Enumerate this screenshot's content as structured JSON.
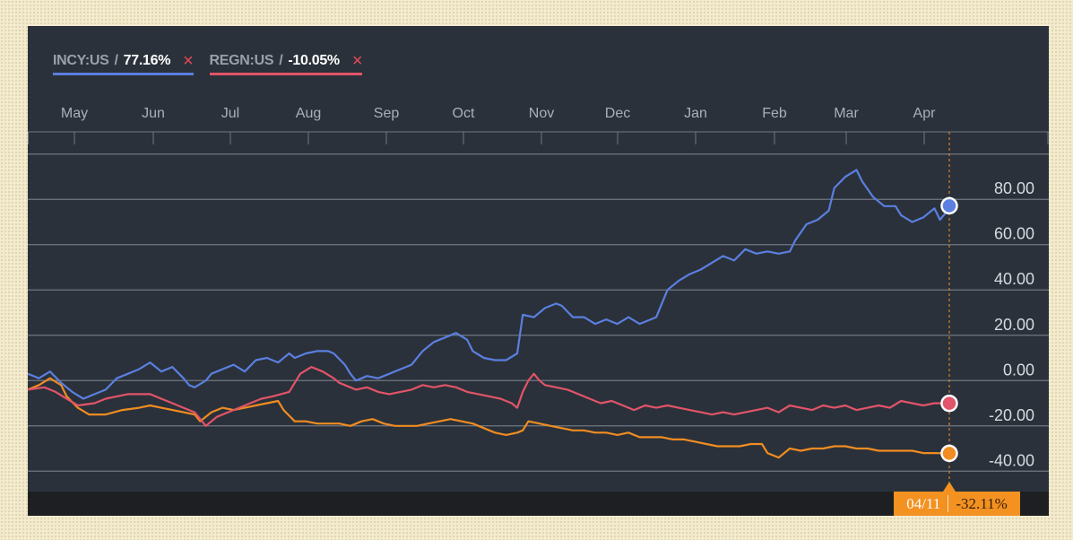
{
  "legend": [
    {
      "symbol": "INCY:US",
      "sep": "/",
      "value": "77.16%",
      "color": "#5b7fe0",
      "close": "×"
    },
    {
      "symbol": "REGN:US",
      "sep": "/",
      "value": "-10.05%",
      "color": "#e25469",
      "close": "×"
    }
  ],
  "badge": {
    "date": "04/11",
    "value": "-32.11%"
  },
  "colors": {
    "incy": "#5b7fe0",
    "regn": "#e25469",
    "third": "#f08c22",
    "background": "#2a313a",
    "grid": "#6f7780",
    "badge": "#f39121"
  },
  "chart_data": {
    "type": "line",
    "x_months": [
      "May",
      "Jun",
      "Jul",
      "Aug",
      "Sep",
      "Oct",
      "Nov",
      "Dec",
      "Jan",
      "Feb",
      "Mar",
      "Apr"
    ],
    "y_ticks": [
      "80.00",
      "60.00",
      "40.00",
      "20.00",
      "0.00",
      "-20.00",
      "-40.00"
    ],
    "y_tick_values": [
      80,
      60,
      40,
      20,
      0,
      -20,
      -40
    ],
    "ylim": [
      -49,
      109
    ],
    "grid": true,
    "legend_position": "top-left",
    "series": [
      {
        "name": "INCY:US",
        "color": "#5b7fe0",
        "last": 77.16,
        "points": [
          [
            0,
            3
          ],
          [
            2,
            1
          ],
          [
            4,
            4
          ],
          [
            6,
            -1
          ],
          [
            8,
            -5
          ],
          [
            10,
            -8
          ],
          [
            12,
            -6
          ],
          [
            14,
            -4
          ],
          [
            16,
            1
          ],
          [
            18,
            3
          ],
          [
            20,
            5
          ],
          [
            22,
            8
          ],
          [
            24,
            4
          ],
          [
            26,
            6
          ],
          [
            28,
            1
          ],
          [
            29,
            -2
          ],
          [
            30,
            -3
          ],
          [
            32,
            0
          ],
          [
            33,
            3
          ],
          [
            35,
            5
          ],
          [
            37,
            7
          ],
          [
            39,
            4
          ],
          [
            41,
            9
          ],
          [
            43,
            10
          ],
          [
            45,
            8
          ],
          [
            47,
            12
          ],
          [
            48,
            10
          ],
          [
            50,
            12
          ],
          [
            52,
            13
          ],
          [
            54,
            13
          ],
          [
            55,
            12
          ],
          [
            57,
            7
          ],
          [
            58,
            3
          ],
          [
            59,
            0
          ],
          [
            61,
            2
          ],
          [
            63,
            1
          ],
          [
            65,
            3
          ],
          [
            67,
            5
          ],
          [
            69,
            7
          ],
          [
            71,
            13
          ],
          [
            73,
            17
          ],
          [
            75,
            19
          ],
          [
            77,
            21
          ],
          [
            79,
            18
          ],
          [
            80,
            13
          ],
          [
            82,
            10
          ],
          [
            84,
            9
          ],
          [
            86,
            9
          ],
          [
            88,
            12
          ],
          [
            89,
            29
          ],
          [
            91,
            28
          ],
          [
            93,
            32
          ],
          [
            95,
            34
          ],
          [
            96,
            33
          ],
          [
            98,
            28
          ],
          [
            100,
            28
          ],
          [
            102,
            25
          ],
          [
            104,
            27
          ],
          [
            106,
            25
          ],
          [
            108,
            28
          ],
          [
            110,
            25
          ],
          [
            112,
            27
          ],
          [
            113,
            28
          ],
          [
            115,
            40
          ],
          [
            117,
            44
          ],
          [
            119,
            47
          ],
          [
            121,
            49
          ],
          [
            123,
            52
          ],
          [
            125,
            55
          ],
          [
            127,
            53
          ],
          [
            129,
            58
          ],
          [
            131,
            56
          ],
          [
            133,
            57
          ],
          [
            135,
            56
          ],
          [
            137,
            57
          ],
          [
            138,
            62
          ],
          [
            140,
            69
          ],
          [
            142,
            71
          ],
          [
            144,
            75
          ],
          [
            145,
            85
          ],
          [
            147,
            90
          ],
          [
            149,
            93
          ],
          [
            150,
            88
          ],
          [
            152,
            81
          ],
          [
            154,
            77
          ],
          [
            156,
            77
          ],
          [
            157,
            73
          ],
          [
            159,
            70
          ],
          [
            161,
            72
          ],
          [
            163,
            76
          ],
          [
            164,
            71
          ],
          [
            165,
            74
          ],
          [
            166,
            77.16
          ]
        ]
      },
      {
        "name": "REGN:US",
        "color": "#e25469",
        "last": -10.05,
        "points": [
          [
            0,
            -4
          ],
          [
            3,
            -3
          ],
          [
            5,
            -5
          ],
          [
            7,
            -8
          ],
          [
            9,
            -11
          ],
          [
            12,
            -10
          ],
          [
            14,
            -8
          ],
          [
            16,
            -7
          ],
          [
            18,
            -6
          ],
          [
            20,
            -6
          ],
          [
            22,
            -6
          ],
          [
            24,
            -8
          ],
          [
            26,
            -10
          ],
          [
            28,
            -12
          ],
          [
            30,
            -14
          ],
          [
            32,
            -20
          ],
          [
            34,
            -16
          ],
          [
            36,
            -14
          ],
          [
            38,
            -12
          ],
          [
            40,
            -10
          ],
          [
            42,
            -8
          ],
          [
            44,
            -7
          ],
          [
            47,
            -5
          ],
          [
            49,
            3
          ],
          [
            51,
            6
          ],
          [
            53,
            4
          ],
          [
            55,
            1
          ],
          [
            56,
            -1
          ],
          [
            57,
            -2
          ],
          [
            59,
            -4
          ],
          [
            61,
            -3
          ],
          [
            63,
            -5
          ],
          [
            65,
            -6
          ],
          [
            67,
            -5
          ],
          [
            69,
            -4
          ],
          [
            71,
            -2
          ],
          [
            73,
            -3
          ],
          [
            75,
            -2
          ],
          [
            77,
            -3
          ],
          [
            79,
            -5
          ],
          [
            81,
            -6
          ],
          [
            83,
            -7
          ],
          [
            85,
            -8
          ],
          [
            87,
            -10
          ],
          [
            88,
            -12
          ],
          [
            89,
            -5
          ],
          [
            90,
            0
          ],
          [
            91,
            3
          ],
          [
            92,
            0
          ],
          [
            93,
            -2
          ],
          [
            95,
            -3
          ],
          [
            97,
            -4
          ],
          [
            99,
            -6
          ],
          [
            101,
            -8
          ],
          [
            103,
            -10
          ],
          [
            105,
            -9
          ],
          [
            107,
            -11
          ],
          [
            109,
            -13
          ],
          [
            111,
            -11
          ],
          [
            113,
            -12
          ],
          [
            115,
            -11
          ],
          [
            117,
            -12
          ],
          [
            119,
            -13
          ],
          [
            121,
            -14
          ],
          [
            123,
            -15
          ],
          [
            125,
            -14
          ],
          [
            127,
            -15
          ],
          [
            129,
            -14
          ],
          [
            131,
            -13
          ],
          [
            133,
            -12
          ],
          [
            135,
            -14
          ],
          [
            137,
            -11
          ],
          [
            139,
            -12
          ],
          [
            141,
            -13
          ],
          [
            143,
            -11
          ],
          [
            145,
            -12
          ],
          [
            147,
            -11
          ],
          [
            149,
            -13
          ],
          [
            151,
            -12
          ],
          [
            153,
            -11
          ],
          [
            155,
            -12
          ],
          [
            157,
            -9
          ],
          [
            159,
            -10
          ],
          [
            161,
            -11
          ],
          [
            163,
            -10
          ],
          [
            165,
            -10.05
          ]
        ]
      },
      {
        "color": "#f08c22",
        "last": -32.11,
        "points": [
          [
            0,
            -4
          ],
          [
            2,
            -2
          ],
          [
            4,
            1
          ],
          [
            6,
            -2
          ],
          [
            7,
            -7
          ],
          [
            9,
            -12
          ],
          [
            11,
            -15
          ],
          [
            14,
            -15
          ],
          [
            17,
            -13
          ],
          [
            20,
            -12
          ],
          [
            22,
            -11
          ],
          [
            24,
            -12
          ],
          [
            26,
            -13
          ],
          [
            28,
            -14
          ],
          [
            30,
            -15
          ],
          [
            31,
            -18
          ],
          [
            33,
            -14
          ],
          [
            35,
            -12
          ],
          [
            37,
            -13
          ],
          [
            39,
            -12
          ],
          [
            41,
            -11
          ],
          [
            43,
            -10
          ],
          [
            45,
            -9
          ],
          [
            46,
            -13
          ],
          [
            48,
            -18
          ],
          [
            50,
            -18
          ],
          [
            52,
            -19
          ],
          [
            54,
            -19
          ],
          [
            56,
            -19
          ],
          [
            58,
            -20
          ],
          [
            60,
            -18
          ],
          [
            62,
            -17
          ],
          [
            64,
            -19
          ],
          [
            66,
            -20
          ],
          [
            68,
            -20
          ],
          [
            70,
            -20
          ],
          [
            72,
            -19
          ],
          [
            74,
            -18
          ],
          [
            76,
            -17
          ],
          [
            78,
            -18
          ],
          [
            80,
            -19
          ],
          [
            82,
            -21
          ],
          [
            84,
            -23
          ],
          [
            86,
            -24
          ],
          [
            88,
            -23
          ],
          [
            89,
            -22
          ],
          [
            90,
            -18
          ],
          [
            92,
            -19
          ],
          [
            94,
            -20
          ],
          [
            96,
            -21
          ],
          [
            98,
            -22
          ],
          [
            100,
            -22
          ],
          [
            102,
            -23
          ],
          [
            104,
            -23
          ],
          [
            106,
            -24
          ],
          [
            108,
            -23
          ],
          [
            110,
            -25
          ],
          [
            112,
            -25
          ],
          [
            114,
            -25
          ],
          [
            116,
            -26
          ],
          [
            118,
            -26
          ],
          [
            120,
            -27
          ],
          [
            122,
            -28
          ],
          [
            124,
            -29
          ],
          [
            126,
            -29
          ],
          [
            128,
            -29
          ],
          [
            130,
            -28
          ],
          [
            132,
            -28
          ],
          [
            133,
            -32
          ],
          [
            135,
            -34
          ],
          [
            137,
            -30
          ],
          [
            139,
            -31
          ],
          [
            141,
            -30
          ],
          [
            143,
            -30
          ],
          [
            145,
            -29
          ],
          [
            147,
            -29
          ],
          [
            149,
            -30
          ],
          [
            151,
            -30
          ],
          [
            153,
            -31
          ],
          [
            155,
            -31
          ],
          [
            157,
            -31
          ],
          [
            159,
            -31
          ],
          [
            161,
            -32
          ],
          [
            163,
            -32
          ],
          [
            165,
            -32.11
          ]
        ]
      }
    ]
  }
}
